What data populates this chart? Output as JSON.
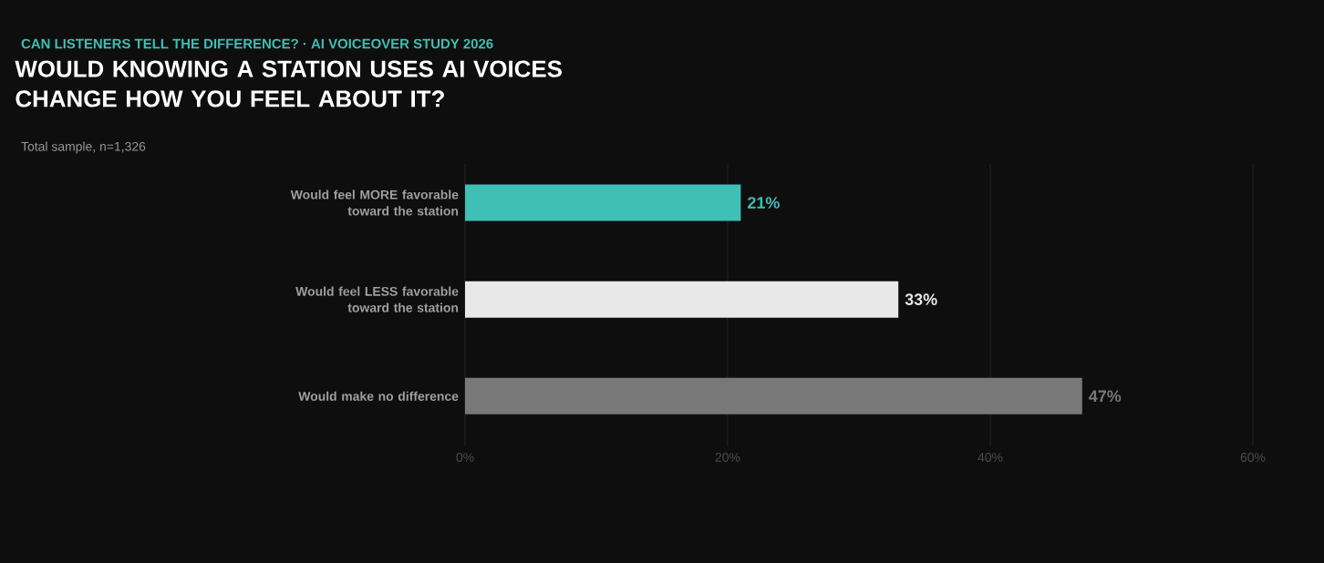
{
  "chart_data": {
    "type": "bar",
    "orientation": "horizontal",
    "title": "WOULD KNOWING A STATION USES AI VOICES CHANGE HOW YOU FEEL ABOUT IT?",
    "subtitle": "Total sample, n=1,326",
    "annotations": [
      "CAN LISTENERS TELL THE DIFFERENCE? · AI VOICEOVER STUDY 2026"
    ],
    "categories": [
      "Would feel MORE favorable toward the station",
      "Would feel LESS favorable toward the station",
      "Would make no difference"
    ],
    "values": [
      21,
      33,
      47
    ],
    "value_labels": [
      "21%",
      "33%",
      "47%"
    ],
    "colors": [
      "#3fbfb5",
      "#e8e8e8",
      "#787878"
    ],
    "xlim": [
      0,
      60
    ],
    "xticks": [
      {
        "value": 0,
        "label": "0%"
      },
      {
        "value": 20,
        "label": "20%"
      },
      {
        "value": 40,
        "label": "40%"
      },
      {
        "value": 60,
        "label": "60%"
      }
    ],
    "grid": "x"
  }
}
